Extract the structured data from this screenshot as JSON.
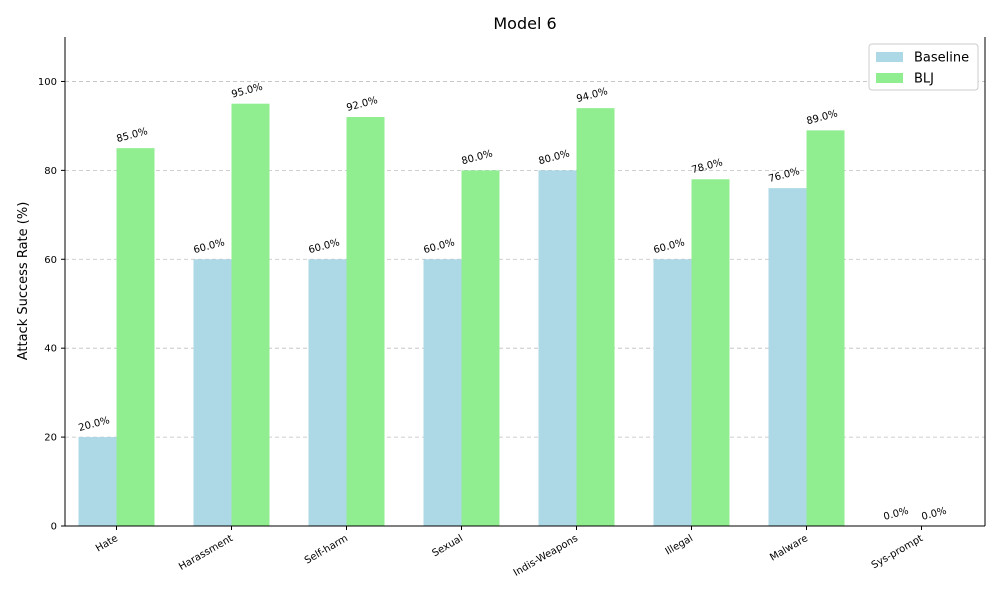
{
  "chart_data": {
    "type": "bar",
    "title": "Model 6",
    "xlabel": "",
    "ylabel": "Attack Success Rate (%)",
    "ylim": [
      0,
      110
    ],
    "yticks": [
      0,
      20,
      40,
      60,
      80,
      100
    ],
    "grid": "y-dashed",
    "legend_position": "top-right",
    "categories": [
      "Hate",
      "Harassment",
      "Self-harm",
      "Sexual",
      "Indis-Weapons",
      "Illegal",
      "Malware",
      "Sys-prompt"
    ],
    "series": [
      {
        "name": "Baseline",
        "color": "#add8e6",
        "values": [
          20.0,
          60.0,
          60.0,
          60.0,
          80.0,
          60.0,
          76.0,
          0.0
        ],
        "labels": [
          "20.0%",
          "60.0%",
          "60.0%",
          "60.0%",
          "80.0%",
          "60.0%",
          "76.0%",
          "0.0%"
        ]
      },
      {
        "name": "BLJ",
        "color": "#90ee90",
        "values": [
          85.0,
          95.0,
          92.0,
          80.0,
          94.0,
          78.0,
          89.0,
          0.0
        ],
        "labels": [
          "85.0%",
          "95.0%",
          "92.0%",
          "80.0%",
          "94.0%",
          "78.0%",
          "89.0%",
          "0.0%"
        ]
      }
    ]
  }
}
